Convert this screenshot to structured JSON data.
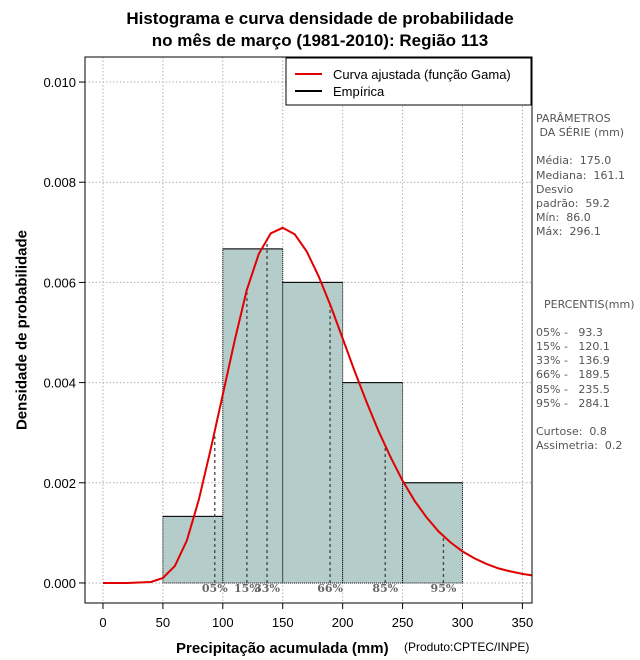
{
  "header": {
    "title_line1": "Histograma e curva densidade de probabilidade",
    "title_line2": "no mês de março (1981-2010): Região 113"
  },
  "chart_data": {
    "type": "bar",
    "title": "Histograma e curva densidade de probabilidade no mês de março (1981-2010): Região 113",
    "xlabel": "Precipitação acumulada (mm)",
    "ylabel": "Densidade de probabilidade",
    "xlim": [
      -15,
      358
    ],
    "ylim": [
      -0.0004,
      0.0105
    ],
    "x_ticks": [
      0,
      50,
      100,
      150,
      200,
      250,
      300,
      350
    ],
    "y_ticks": [
      0.0,
      0.002,
      0.004,
      0.006,
      0.008,
      0.01
    ],
    "y_tick_labels": [
      "0.000",
      "0.002",
      "0.004",
      "0.006",
      "0.008",
      "0.010"
    ],
    "grid": true,
    "bins": [
      {
        "from": 50,
        "to": 100,
        "density": 0.00133
      },
      {
        "from": 100,
        "to": 150,
        "density": 0.00667
      },
      {
        "from": 150,
        "to": 200,
        "density": 0.006
      },
      {
        "from": 200,
        "to": 250,
        "density": 0.004
      },
      {
        "from": 250,
        "to": 300,
        "density": 0.002
      }
    ],
    "curve": {
      "name": "Curva ajustada (função Gama)",
      "color": "#e00000",
      "x": [
        0,
        20,
        40,
        50,
        60,
        70,
        80,
        90,
        100,
        110,
        120,
        130,
        140,
        150,
        160,
        170,
        180,
        190,
        200,
        210,
        220,
        230,
        240,
        250,
        260,
        270,
        280,
        290,
        300,
        310,
        320,
        330,
        340,
        350,
        358
      ],
      "y": [
        0.0,
        0.0,
        2e-05,
        0.0001,
        0.00034,
        0.00085,
        0.00166,
        0.00268,
        0.00376,
        0.00485,
        0.00585,
        0.00657,
        0.00698,
        0.00709,
        0.00696,
        0.00662,
        0.00612,
        0.00553,
        0.00488,
        0.00423,
        0.00361,
        0.00303,
        0.00251,
        0.00204,
        0.00164,
        0.00131,
        0.00103,
        0.00081,
        0.00063,
        0.00049,
        0.00038,
        0.00029,
        0.00023,
        0.00018,
        0.00015
      ]
    },
    "empirical_legend": "Empírica",
    "legend": {
      "position": "top-right",
      "entries": [
        {
          "label": "Curva ajustada (função Gama)",
          "color": "#e00000"
        },
        {
          "label": "Empírica",
          "color": "#000000"
        }
      ]
    },
    "percentile_lines": [
      {
        "label": "05%",
        "x": 93.3
      },
      {
        "label": "15%",
        "x": 120.1
      },
      {
        "label": "33%",
        "x": 136.9
      },
      {
        "label": "66%",
        "x": 189.5
      },
      {
        "label": "85%",
        "x": 235.5
      },
      {
        "label": "95%",
        "x": 284.1
      }
    ],
    "bar_color": "#b4cdcb"
  },
  "side_panel": {
    "params_title": "PARÂMETROS\n DA SÉRIE (mm)",
    "params": "Média:  175.0\nMediana:  161.1\nDesvio\npadrão:  59.2\nMín:  86.0\nMáx:  296.1",
    "percentis_title": "PERCENTIS(mm)",
    "percentis": "05% -   93.3\n15% -   120.1\n33% -   136.9\n66% -   189.5\n85% -   235.5\n95% -   284.1",
    "stats": "Curtose:  0.8\nAssimetria:  0.2"
  },
  "credit": "(Produto:CPTEC/INPE)"
}
